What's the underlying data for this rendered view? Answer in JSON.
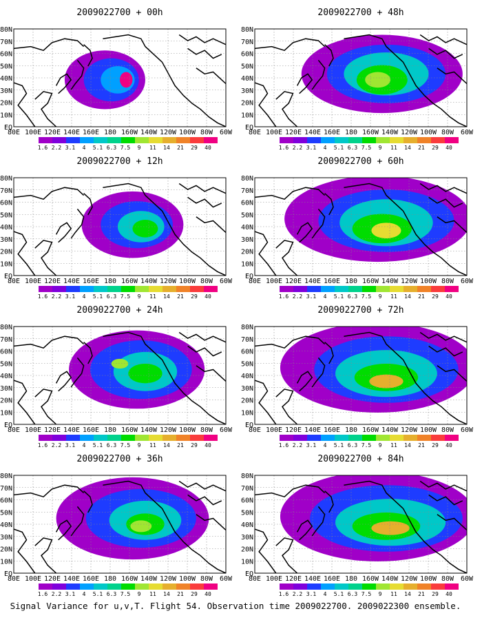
{
  "figure": {
    "caption": "Signal Variance for u,v,T. Flight 54. Observation time 2009022700. 2009022300 ensemble."
  },
  "colorbar": {
    "labels": [
      "1.6",
      "2.2",
      "3.1",
      "4",
      "5.1",
      "6.3",
      "7.5",
      "9",
      "11",
      "14",
      "21",
      "29",
      "40"
    ],
    "colors": [
      "#a000c8",
      "#7f00dc",
      "#1e3cff",
      "#00a0ff",
      "#00c8c8",
      "#00d28c",
      "#00dc00",
      "#a0e632",
      "#e6dc32",
      "#e6af2d",
      "#f08228",
      "#fa3c3c",
      "#f00082"
    ]
  },
  "axes": {
    "lat_labels": [
      "80N",
      "70N",
      "60N",
      "50N",
      "40N",
      "30N",
      "20N",
      "10N",
      "EQ"
    ],
    "lon_labels": [
      "80E",
      "100E",
      "120E",
      "140E",
      "160E",
      "180",
      "160W",
      "140W",
      "120W",
      "100W",
      "80W",
      "60W"
    ]
  },
  "panels": [
    {
      "title": "2009022700 + 00h",
      "lead_hours": 0
    },
    {
      "title": "2009022700 + 48h",
      "lead_hours": 48
    },
    {
      "title": "2009022700 + 12h",
      "lead_hours": 12
    },
    {
      "title": "2009022700 + 60h",
      "lead_hours": 60
    },
    {
      "title": "2009022700 + 24h",
      "lead_hours": 24
    },
    {
      "title": "2009022700 + 72h",
      "lead_hours": 72
    },
    {
      "title": "2009022700 + 36h",
      "lead_hours": 36
    },
    {
      "title": "2009022700 + 84h",
      "lead_hours": 84
    }
  ]
}
